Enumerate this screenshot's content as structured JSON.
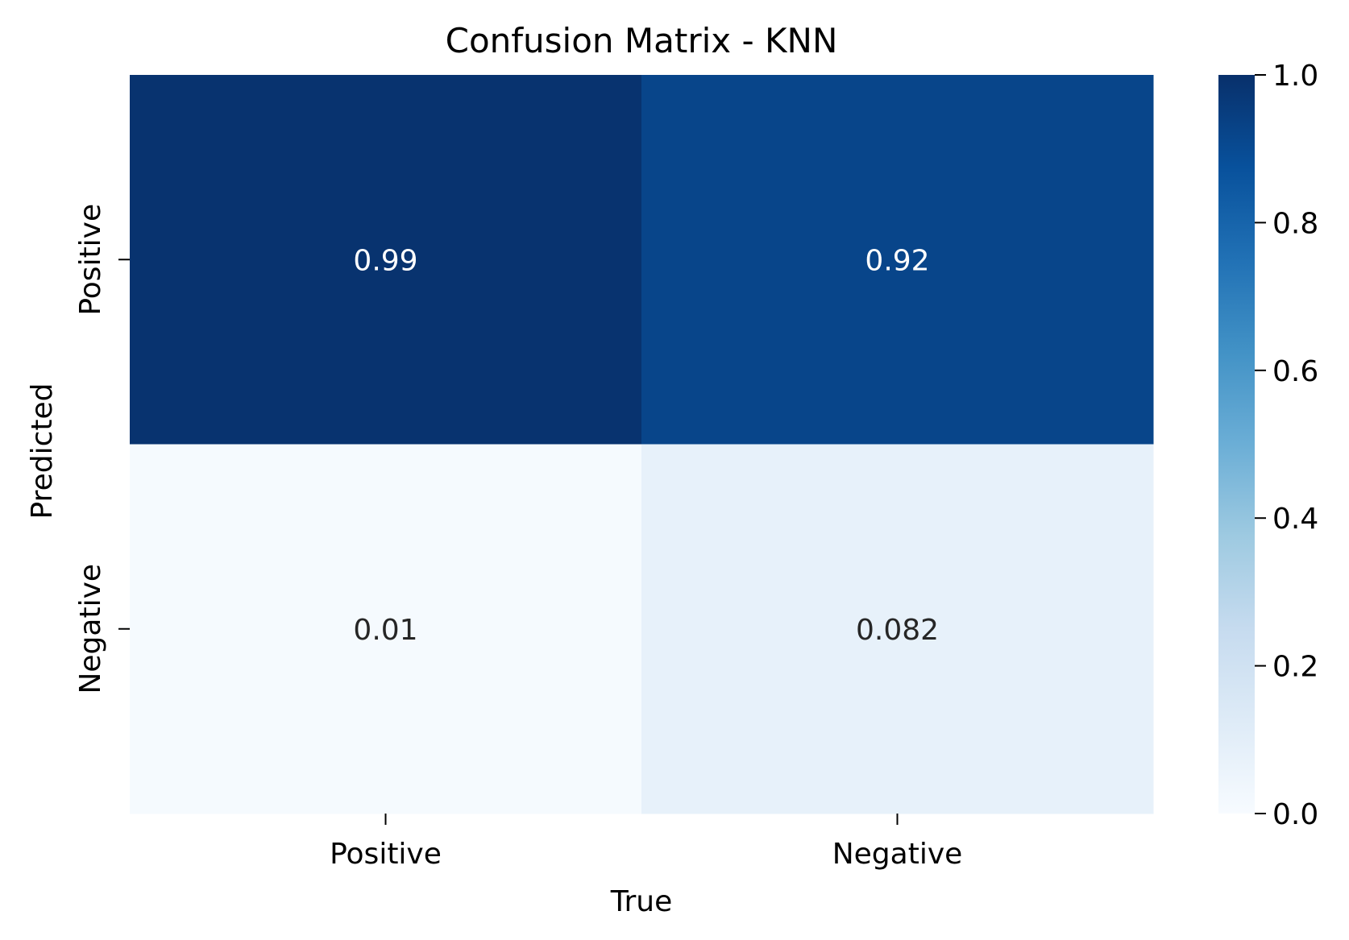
{
  "chart_data": {
    "type": "heatmap",
    "title": "Confusion Matrix - KNN",
    "xlabel": "True",
    "ylabel": "Predicted",
    "x_categories": [
      "Positive",
      "Negative"
    ],
    "y_categories": [
      "Positive",
      "Negative"
    ],
    "values": [
      [
        0.99,
        0.92
      ],
      [
        0.01,
        0.082
      ]
    ],
    "cell_labels": [
      [
        "0.99",
        "0.92"
      ],
      [
        "0.01",
        "0.082"
      ]
    ],
    "colormap": "Blues",
    "colorbar": {
      "vmin": 0.0,
      "vmax": 1.0,
      "ticks": [
        0.0,
        0.2,
        0.4,
        0.6,
        0.8,
        1.0
      ],
      "tick_labels": [
        "0.0",
        "0.2",
        "0.4",
        "0.6",
        "0.8",
        "1.0"
      ]
    }
  }
}
